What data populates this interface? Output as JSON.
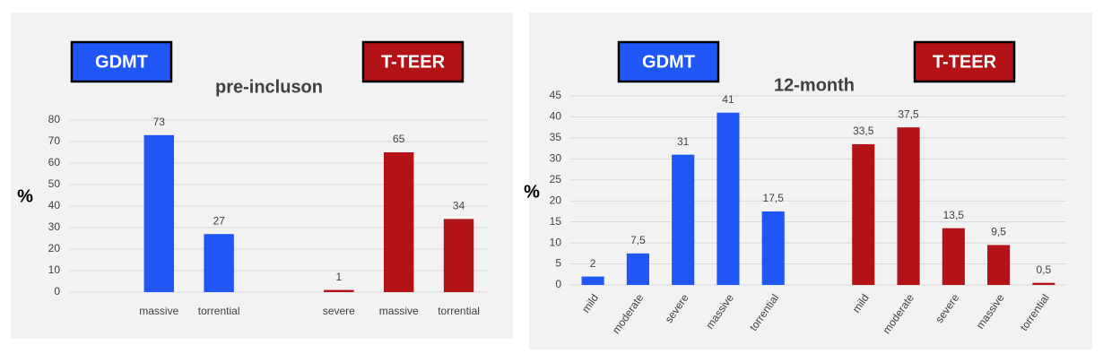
{
  "chart_data": [
    {
      "type": "bar",
      "title": "pre-incluson",
      "y_label": "%",
      "categories": [
        null,
        "massive",
        "torrential",
        null,
        "severe",
        "massive",
        "torrential"
      ],
      "series": [
        {
          "name": "GDMT",
          "color": "#1f56f5",
          "values": [
            null,
            73,
            27,
            null,
            null,
            null,
            null
          ]
        },
        {
          "name": "T-TEER",
          "color": "#b31217",
          "values": [
            null,
            null,
            null,
            null,
            1,
            65,
            34
          ]
        }
      ],
      "ylim": [
        0,
        80
      ],
      "yticks": [
        0,
        10,
        20,
        30,
        40,
        50,
        60,
        70,
        80
      ],
      "grid": true
    },
    {
      "type": "bar",
      "title": "12-month",
      "y_label": "%",
      "categories": [
        "mild",
        "moderate",
        "severe",
        "massive",
        "torrential",
        null,
        "mild",
        "moderate",
        "severe",
        "massive",
        "torrential"
      ],
      "series": [
        {
          "name": "GDMT",
          "color": "#1f56f5",
          "values": [
            2,
            7.5,
            31,
            41,
            17.5,
            null,
            null,
            null,
            null,
            null,
            null
          ],
          "value_labels": [
            "2",
            "7,5",
            "31",
            "41",
            "17,5",
            null,
            null,
            null,
            null,
            null,
            null
          ]
        },
        {
          "name": "T-TEER",
          "color": "#b31217",
          "values": [
            null,
            null,
            null,
            null,
            null,
            null,
            33.5,
            37.5,
            13.5,
            9.5,
            0.5
          ],
          "value_labels": [
            null,
            null,
            null,
            null,
            null,
            null,
            "33,5",
            "37,5",
            "13,5",
            "9,5",
            "0,5"
          ]
        }
      ],
      "ylim": [
        0,
        45
      ],
      "yticks": [
        0,
        5,
        10,
        15,
        20,
        25,
        30,
        35,
        40,
        45
      ],
      "grid": true
    }
  ]
}
